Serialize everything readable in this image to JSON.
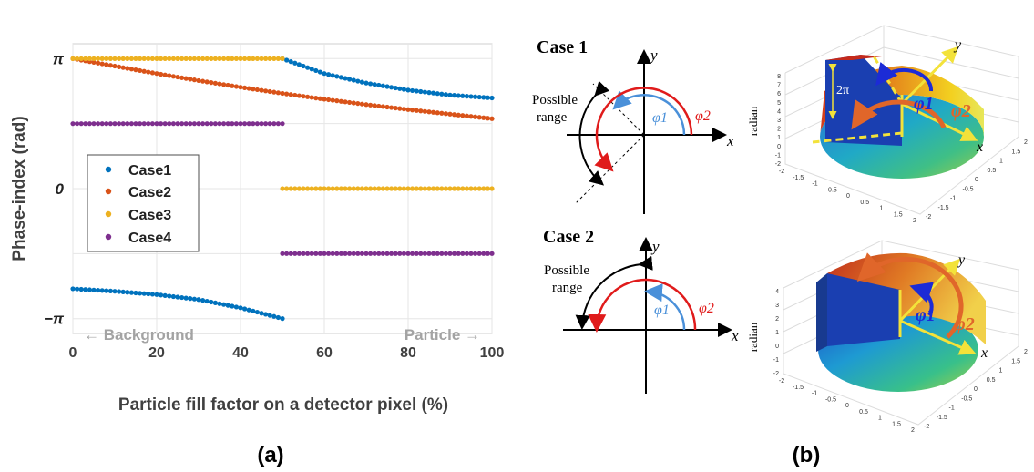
{
  "panel_a": {
    "label": "(a)",
    "ylabel": "Phase-index (rad)",
    "xlabel": "Particle fill factor on a detector pixel (%)",
    "yticks": [
      "π",
      "0",
      "−π"
    ],
    "xticks": [
      "0",
      "20",
      "40",
      "60",
      "80",
      "100"
    ],
    "annotation_left": "← Background",
    "annotation_right": "Particle →"
  },
  "panel_b": {
    "label": "(b)",
    "case1": {
      "title": "Case 1",
      "range_label": [
        "Possible",
        "range"
      ],
      "axis_x": "x",
      "axis_y": "y",
      "phi1": "φ1",
      "phi2": "φ2"
    },
    "case2": {
      "title": "Case 2",
      "range_label": [
        "Possible",
        "range"
      ],
      "axis_x": "x",
      "axis_y": "y",
      "phi1": "φ1",
      "phi2": "φ2"
    },
    "surface1": {
      "zlabel": "radian",
      "two_pi": "2π",
      "phi1": "φ1",
      "phi2": "φ2",
      "axis_x": "x",
      "axis_y": "y",
      "ticks_z": [
        "8",
        "7",
        "6",
        "5",
        "4",
        "3",
        "2",
        "1",
        "0",
        "-1",
        "-2"
      ],
      "ticks_a": [
        "-2",
        "-1.5",
        "-1",
        "-0.5",
        "0",
        "0.5",
        "1",
        "1.5",
        "2"
      ],
      "ticks_b": [
        "-2",
        "-1.5",
        "-1",
        "-0.5",
        "0",
        "0.5",
        "1",
        "1.5",
        "2"
      ]
    },
    "surface2": {
      "zlabel": "radian",
      "phi1": "φ1",
      "phi2": "φ2",
      "axis_x": "x",
      "axis_y": "y",
      "ticks_z": [
        "4",
        "3",
        "2",
        "1",
        "0",
        "-1",
        "-2"
      ],
      "ticks_a": [
        "-2",
        "-1.5",
        "-1",
        "-0.5",
        "0",
        "0.5",
        "1",
        "1.5",
        "2"
      ],
      "ticks_b": [
        "-2",
        "-1.5",
        "-1",
        "-0.5",
        "0",
        "0.5",
        "1",
        "1.5",
        "2"
      ]
    }
  },
  "chart_data": {
    "type": "scatter",
    "xlabel": "Particle fill factor on a detector pixel (%)",
    "ylabel": "Phase-index (rad)",
    "xlim": [
      0,
      100
    ],
    "ylim": [
      -3.5,
      3.5
    ],
    "grid": true,
    "legend_position": "left",
    "series": [
      {
        "name": "Case1",
        "color": "#0072BD",
        "x": [
          0,
          10,
          20,
          30,
          40,
          50,
          50,
          60,
          70,
          80,
          90,
          100
        ],
        "y": [
          -2.42,
          -2.48,
          -2.56,
          -2.68,
          -2.88,
          -3.14,
          3.14,
          2.78,
          2.55,
          2.38,
          2.26,
          2.19
        ]
      },
      {
        "name": "Case2",
        "color": "#D95319",
        "x": [
          0,
          10,
          20,
          30,
          40,
          50,
          60,
          70,
          80,
          90,
          100
        ],
        "y": [
          3.14,
          2.96,
          2.78,
          2.61,
          2.45,
          2.3,
          2.16,
          2.03,
          1.91,
          1.8,
          1.69
        ]
      },
      {
        "name": "Case3",
        "color": "#EDB120",
        "x": [
          0,
          10,
          20,
          30,
          40,
          50,
          50,
          60,
          70,
          80,
          90,
          100
        ],
        "y": [
          3.14,
          3.14,
          3.14,
          3.14,
          3.14,
          3.14,
          0,
          0,
          0,
          0,
          0,
          0
        ]
      },
      {
        "name": "Case4",
        "color": "#7E2F8E",
        "x": [
          0,
          10,
          20,
          30,
          40,
          50,
          50,
          60,
          70,
          80,
          90,
          100
        ],
        "y": [
          1.57,
          1.57,
          1.57,
          1.57,
          1.57,
          1.57,
          -1.57,
          -1.57,
          -1.57,
          -1.57,
          -1.57,
          -1.57
        ]
      }
    ]
  }
}
